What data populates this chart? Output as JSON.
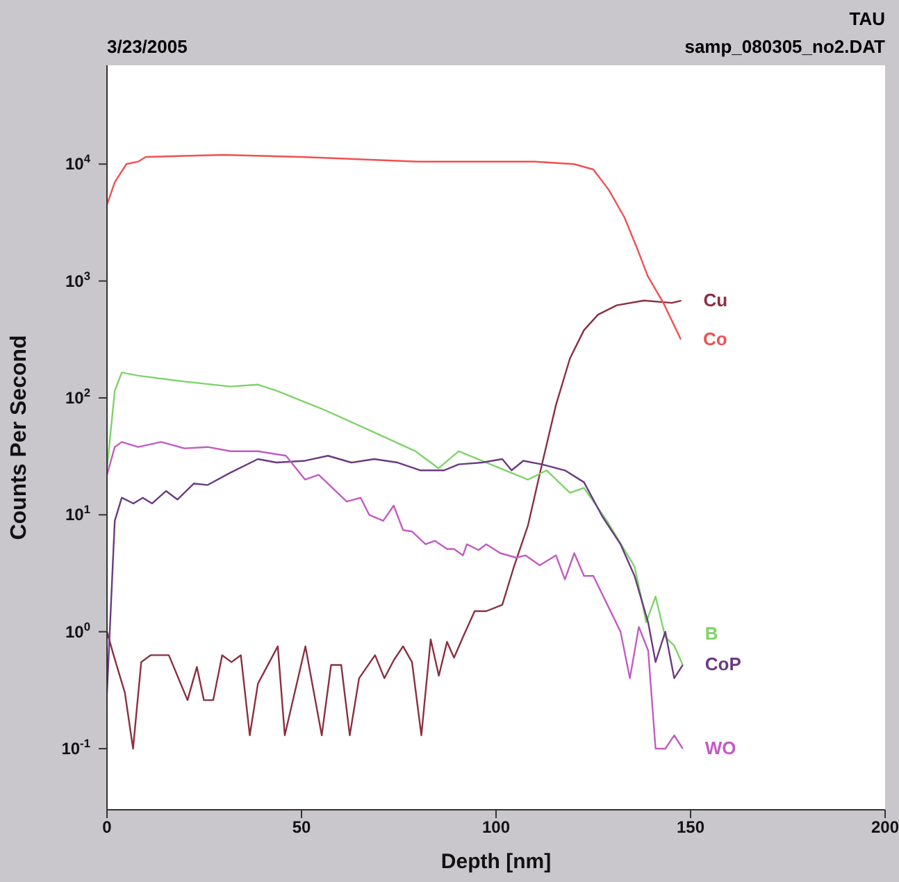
{
  "chart_data": {
    "type": "line",
    "xlabel": "Depth [nm]",
    "ylabel": "Counts Per Second",
    "annotations": [
      "TAU",
      "3/23/2005",
      "samp_080305_no2.DAT"
    ],
    "xlim": [
      0,
      200
    ],
    "xticks": [
      0,
      50,
      100,
      150,
      200
    ],
    "log": "y",
    "ylim": [
      0.03,
      70000
    ],
    "yticks": [
      {
        "value": 0.1,
        "label": "10$^{-1}$"
      },
      {
        "value": 1,
        "label": "10$^{0}$"
      },
      {
        "value": 10,
        "label": "10$^{1}$"
      },
      {
        "value": 100,
        "label": "10$^{2}$"
      },
      {
        "value": 1000,
        "label": "10$^{3}$"
      },
      {
        "value": 10000,
        "label": "10$^{4}$"
      }
    ],
    "grid": false,
    "legend": false,
    "marker": "none",
    "line_style": "solid",
    "series": [
      {
        "name": "Cu",
        "color": "#8a3040",
        "x": [
          0,
          1.7,
          4.6,
          6.7,
          8.8,
          11.2,
          15.9,
          20.7,
          23.1,
          24.9,
          27.3,
          29.6,
          32,
          34.4,
          36.7,
          38.8,
          43.9,
          45.7,
          51,
          55.2,
          57.6,
          60.2,
          62.4,
          64.8,
          68.9,
          71.3,
          73.7,
          76.1,
          78.4,
          80.8,
          83.2,
          85.3,
          87.4,
          89.2,
          91.5,
          94.5,
          97.5,
          101.6,
          104.6,
          108.2,
          111.8,
          115.4,
          119,
          122.6,
          126.2,
          131,
          138,
          145.2,
          147.6
        ],
        "values": [
          1,
          0.63,
          0.3,
          0.1,
          0.55,
          0.63,
          0.63,
          0.26,
          0.5,
          0.26,
          0.26,
          0.63,
          0.55,
          0.63,
          0.13,
          0.36,
          0.75,
          0.13,
          0.75,
          0.13,
          0.52,
          0.52,
          0.13,
          0.4,
          0.63,
          0.4,
          0.57,
          0.75,
          0.55,
          0.13,
          0.86,
          0.42,
          0.82,
          0.6,
          0.9,
          1.5,
          1.5,
          1.7,
          3.6,
          8.1,
          27,
          87,
          218,
          380,
          515,
          620,
          680,
          650,
          680
        ]
      },
      {
        "name": "Co",
        "color": "#f05050",
        "x": [
          0,
          2,
          5,
          8,
          10,
          30,
          50,
          80,
          110,
          120,
          125,
          129,
          133,
          136,
          139,
          143,
          147.5
        ],
        "values": [
          4500,
          7000,
          10000,
          10500,
          11500,
          12000,
          11500,
          10500,
          10500,
          10000,
          9000,
          6000,
          3500,
          2000,
          1100,
          650,
          316
        ]
      },
      {
        "name": "B",
        "color": "#7fd36a",
        "x": [
          0,
          2,
          3.8,
          8,
          19.9,
          31.8,
          38.8,
          43.6,
          55.5,
          67.4,
          79.3,
          85.2,
          90.4,
          97.5,
          108.2,
          113,
          119,
          122.6,
          128.5,
          135.6,
          137.4,
          138.6,
          141,
          143.5,
          145.8,
          148
        ],
        "values": [
          25,
          115,
          165,
          155,
          138,
          125,
          130,
          115,
          80,
          53,
          35,
          25,
          35,
          28,
          20,
          24,
          15.4,
          17,
          8.9,
          3.6,
          1.9,
          1.2,
          2,
          0.9,
          0.76,
          0.52
        ]
      },
      {
        "name": "CoP",
        "color": "#6a3a80",
        "x": [
          0,
          2,
          3.8,
          6.8,
          9.2,
          11.6,
          15.2,
          18.1,
          22.3,
          25.9,
          31.8,
          38.8,
          43.6,
          50.9,
          56.8,
          62.8,
          68.7,
          74.7,
          80.6,
          86.6,
          90.4,
          96.4,
          101.6,
          104,
          107,
          111.8,
          117.7,
          122.6,
          127.3,
          132,
          135.6,
          139.1,
          141,
          143.5,
          145.8,
          148
        ],
        "values": [
          0.3,
          8.9,
          14,
          12.5,
          14,
          12.5,
          16,
          13.5,
          18.5,
          18,
          23,
          30,
          28,
          29,
          32,
          28,
          30,
          28,
          24,
          24,
          27,
          28,
          30,
          24,
          29,
          27,
          24,
          19,
          9.7,
          5.6,
          3,
          1.2,
          0.55,
          1,
          0.4,
          0.52
        ]
      },
      {
        "name": "WO",
        "color": "#c25bc2",
        "x": [
          0,
          2,
          3.8,
          8,
          13.9,
          19.9,
          25.9,
          31.8,
          38.8,
          46,
          50.9,
          54.4,
          56.8,
          61.6,
          65.2,
          67.4,
          71,
          73.7,
          76.1,
          78.4,
          81.9,
          84.3,
          87.4,
          89.2,
          91.5,
          92.5,
          95.5,
          97.5,
          101.1,
          105.2,
          107.6,
          111.2,
          115.4,
          117.7,
          120.1,
          122.6,
          125,
          132,
          134.4,
          136.7,
          139.1,
          141,
          143.5,
          145.8,
          148
        ],
        "values": [
          22,
          38,
          42,
          38,
          42,
          37,
          38,
          35,
          35,
          32,
          20,
          22,
          18.5,
          13,
          14,
          10,
          8.9,
          12,
          7.4,
          7.2,
          5.6,
          6,
          5.1,
          5.1,
          4.5,
          5.6,
          5,
          5.6,
          4.7,
          4.3,
          4.5,
          3.7,
          4.5,
          2.8,
          4.7,
          3,
          3,
          1,
          0.4,
          1.1,
          0.69,
          0.1,
          0.1,
          0.13,
          0.1
        ]
      }
    ]
  }
}
